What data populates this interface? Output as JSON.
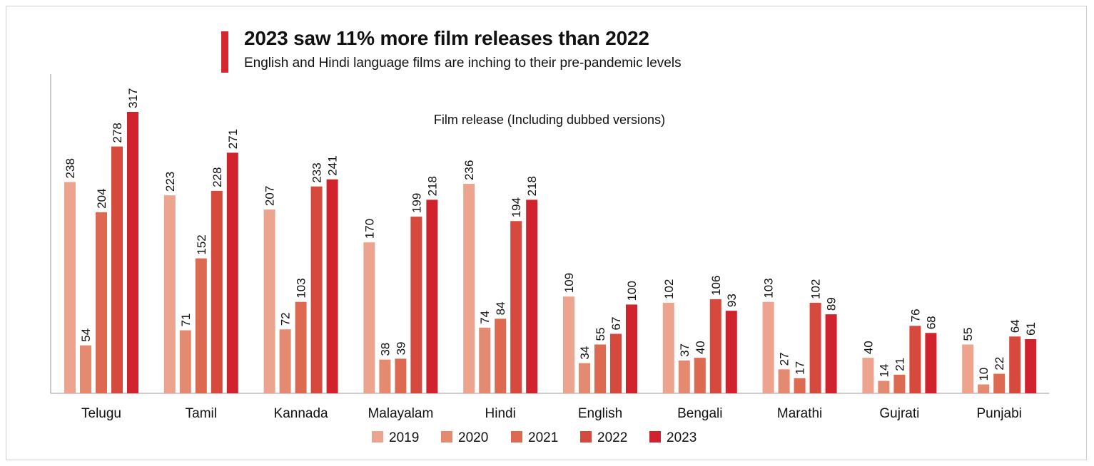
{
  "title": "2023 saw 11% more film releases than 2022",
  "subtitle": "English and Hindi language films are inching to their pre-pandemic levels",
  "accent_color": "#d7262e",
  "chart_data": {
    "type": "bar",
    "chart_subtitle": "Film release (Including dubbed versions)",
    "categories": [
      "Telugu",
      "Tamil",
      "Kannada",
      "Malayalam",
      "Hindi",
      "English",
      "Bengali",
      "Marathi",
      "Gujrati",
      "Punjabi"
    ],
    "series": [
      {
        "name": "2019",
        "color": "#eda48f",
        "values": [
          238,
          223,
          207,
          170,
          236,
          109,
          102,
          103,
          40,
          55
        ]
      },
      {
        "name": "2020",
        "color": "#e48a70",
        "values": [
          54,
          71,
          72,
          38,
          74,
          34,
          37,
          27,
          14,
          10
        ]
      },
      {
        "name": "2021",
        "color": "#dd6a50",
        "values": [
          204,
          152,
          103,
          39,
          84,
          55,
          40,
          17,
          21,
          22
        ]
      },
      {
        "name": "2022",
        "color": "#d54a3c",
        "values": [
          278,
          228,
          233,
          199,
          194,
          67,
          106,
          102,
          76,
          64
        ]
      },
      {
        "name": "2023",
        "color": "#d1232d",
        "values": [
          317,
          271,
          241,
          218,
          218,
          100,
          93,
          89,
          68,
          61
        ]
      }
    ],
    "ylim": [
      0,
      317
    ],
    "grid": false,
    "legend_position": "bottom-center",
    "data_labels": "rotated-vertical"
  }
}
